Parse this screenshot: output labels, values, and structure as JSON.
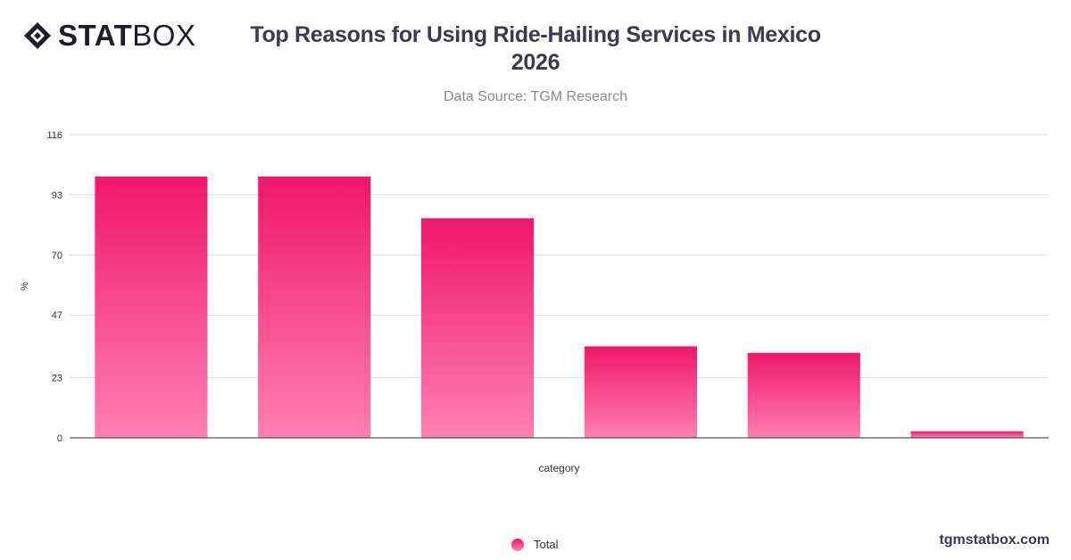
{
  "logo": {
    "bold": "STAT",
    "regular": "BOX"
  },
  "header": {
    "title_line1": "Top Reasons for Using Ride-Hailing Services in Mexico",
    "title_line2": "2026",
    "subtitle": "Data Source: TGM Research"
  },
  "footer": {
    "site": "tgmstatbox.com"
  },
  "chart_data": {
    "type": "bar",
    "categories": [
      "",
      "",
      "",
      "",
      "",
      ""
    ],
    "series": [
      {
        "name": "Total",
        "values": [
          100,
          100,
          84,
          35,
          32.5,
          2.5
        ]
      }
    ],
    "xlabel": "category",
    "ylabel": "%",
    "ylim": [
      0,
      116
    ],
    "yticks": [
      0,
      23,
      47,
      70,
      93,
      116
    ],
    "grid": true,
    "legend": "bottom-center",
    "colors": {
      "bar_top": "#f0176a",
      "bar_bottom": "#ff80b0",
      "grid": "#dddddd",
      "axis": "#333333"
    }
  }
}
